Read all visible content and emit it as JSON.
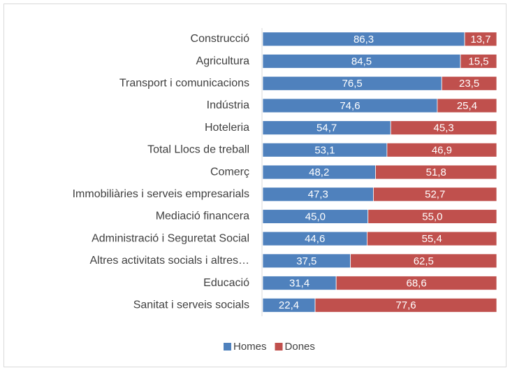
{
  "chart_data": {
    "type": "stacked_bar_horizontal",
    "categories": [
      "Construcció",
      "Agricultura",
      "Transport i comunicacions",
      "Indústria",
      "Hoteleria",
      "Total Llocs de treball",
      "Comerç",
      "Immobiliàries i serveis empresarials",
      "Mediació financera",
      "Administració i Seguretat Social",
      "Altres activitats socials i altres…",
      "Educació",
      "Sanitat i serveis socials"
    ],
    "series": [
      {
        "name": "Homes",
        "color": "#4f81bd",
        "values": [
          86.3,
          84.5,
          76.5,
          74.6,
          54.7,
          53.1,
          48.2,
          47.3,
          45.0,
          44.6,
          37.5,
          31.4,
          22.4
        ],
        "value_labels": [
          "86,3",
          "84,5",
          "76,5",
          "74,6",
          "54,7",
          "53,1",
          "48,2",
          "47,3",
          "45,0",
          "44,6",
          "37,5",
          "31,4",
          "22,4"
        ]
      },
      {
        "name": "Dones",
        "color": "#c0504d",
        "values": [
          13.7,
          15.5,
          23.5,
          25.4,
          45.3,
          46.9,
          51.8,
          52.7,
          55.0,
          55.4,
          62.5,
          68.6,
          77.6
        ],
        "value_labels": [
          "13,7",
          "15,5",
          "23,5",
          "25,4",
          "45,3",
          "46,9",
          "51,8",
          "52,7",
          "55,0",
          "55,4",
          "62,5",
          "68,6",
          "77,6"
        ]
      }
    ],
    "xlim": [
      0,
      100
    ],
    "legend": "bottom"
  }
}
